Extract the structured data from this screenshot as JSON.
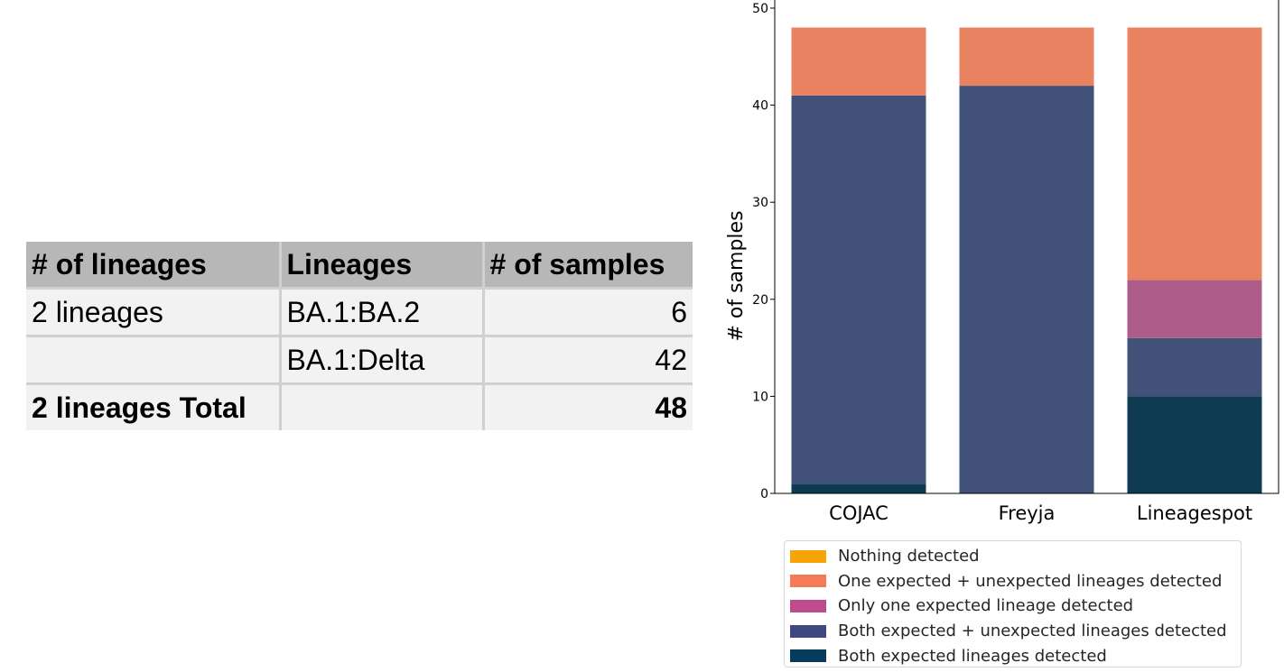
{
  "table": {
    "headers": [
      "# of lineages",
      "Lineages",
      "# of samples"
    ],
    "rows": [
      [
        "2 lineages",
        "BA.1:BA.2",
        "6"
      ],
      [
        "",
        "BA.1:Delta",
        "42"
      ]
    ],
    "total_row": [
      "2 lineages Total",
      "",
      "48"
    ]
  },
  "chart_data": {
    "type": "bar",
    "stacked": true,
    "title": "",
    "xlabel": "",
    "ylabel": "# of samples",
    "categories": [
      "COJAC",
      "Freyja",
      "Lineagespot"
    ],
    "ylim": [
      0,
      50
    ],
    "yticks": [
      0,
      10,
      20,
      30,
      40,
      50
    ],
    "grid": false,
    "legend_position": "bottom",
    "series": [
      {
        "name": "Both expected lineages detected",
        "color": "#0e3a52",
        "values": [
          1,
          0,
          10
        ]
      },
      {
        "name": "Both expected + unexpected lineages detected",
        "color": "#415178",
        "values": [
          40,
          42,
          6
        ]
      },
      {
        "name": "Only one expected lineage detected",
        "color": "#ae5d8a",
        "values": [
          0,
          0,
          6
        ]
      },
      {
        "name": "One expected + unexpected lineages detected",
        "color": "#e98261",
        "values": [
          7,
          6,
          26
        ]
      },
      {
        "name": "Nothing detected",
        "color": "#f2a007",
        "values": [
          0,
          0,
          0
        ]
      }
    ],
    "legend_order": [
      {
        "name": "Nothing detected",
        "color": "#f5a507"
      },
      {
        "name": "One expected + unexpected lineages detected",
        "color": "#f47a58"
      },
      {
        "name": "Only one expected lineage detected",
        "color": "#bb4d8e"
      },
      {
        "name": "Both expected + unexpected lineages detected",
        "color": "#3c4a80"
      },
      {
        "name": "Both expected lineages detected",
        "color": "#053c5c"
      }
    ]
  }
}
